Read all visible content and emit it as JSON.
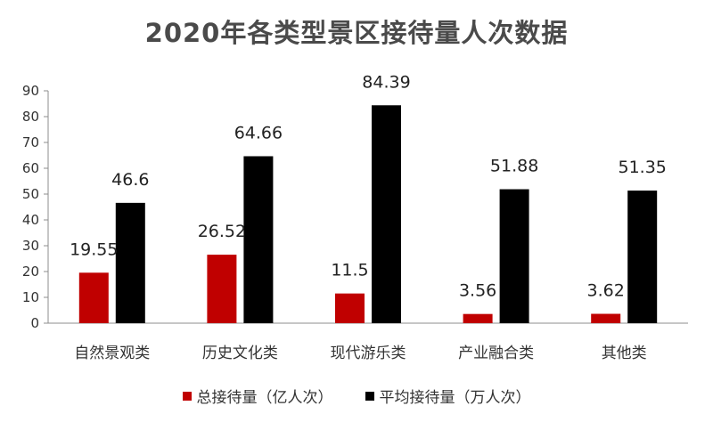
{
  "chart_data": {
    "type": "bar",
    "title": "2020年各类型景区接待量人次数据",
    "categories": [
      "自然景观类",
      "历史文化类",
      "现代游乐类",
      "产业融合类",
      "其他类"
    ],
    "series": [
      {
        "name": "总接待量（亿人次）",
        "color": "#c00000",
        "values": [
          19.55,
          26.52,
          11.5,
          3.56,
          3.62
        ]
      },
      {
        "name": "平均接待量（万人次）",
        "color": "#000000",
        "values": [
          46.6,
          64.66,
          84.39,
          51.88,
          51.35
        ]
      }
    ],
    "ylim": [
      0,
      90
    ],
    "yticks": [
      0,
      10,
      20,
      30,
      40,
      50,
      60,
      70,
      80,
      90
    ],
    "xlabel": "",
    "ylabel": "",
    "grid": false,
    "legend": "bottom",
    "data_labels": true
  }
}
